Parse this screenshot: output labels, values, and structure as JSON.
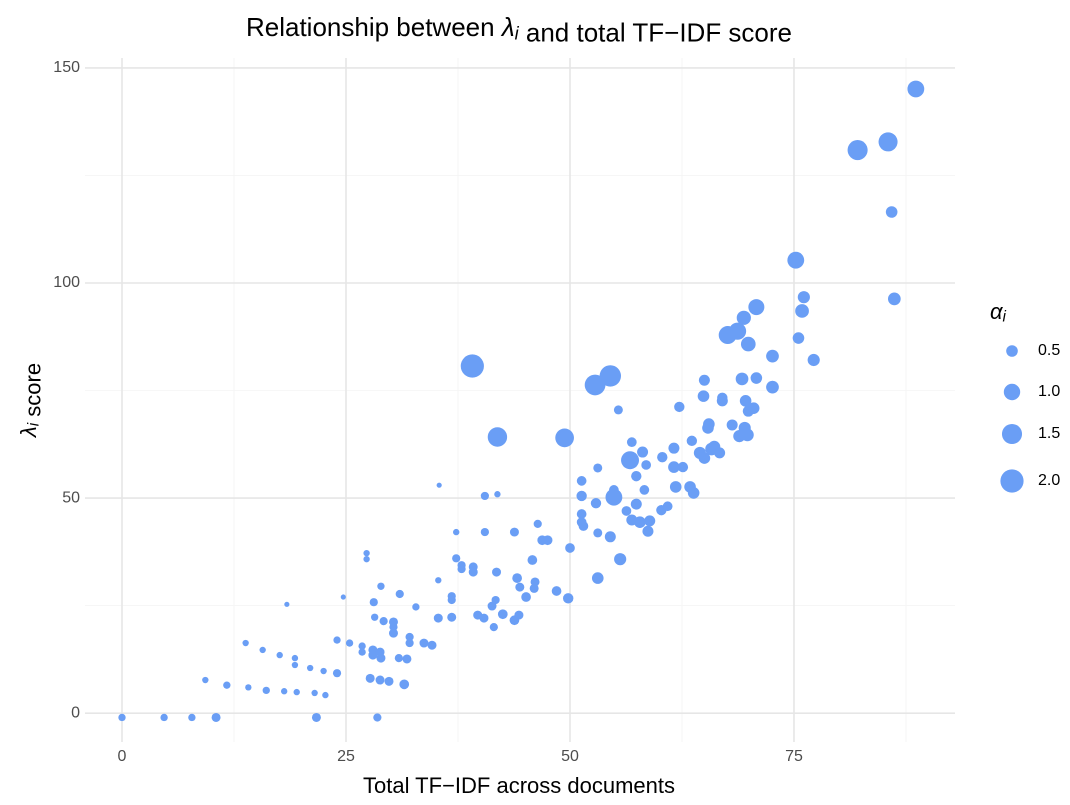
{
  "chart_data": {
    "type": "scatter",
    "title": "Relationship between λi and total TF−IDF score",
    "x_label": "Total TF−IDF across documents",
    "y_label": "λi score",
    "xlim": [
      -4.13,
      92.97
    ],
    "ylim": [
      -6.7,
      152.3
    ],
    "xticks": [
      0,
      25,
      50,
      75
    ],
    "yticks": [
      0,
      50,
      100,
      150
    ],
    "xminor": [
      12.5,
      37.5,
      62.5,
      87.5
    ],
    "yminor": [
      25,
      75,
      125
    ],
    "grid": true,
    "size_legend": {
      "title": "αi",
      "values": [
        {
          "value": 0.5,
          "label": "0.5"
        },
        {
          "value": 1,
          "label": "1.0"
        },
        {
          "value": 1.5,
          "label": "1.5"
        },
        {
          "value": 2,
          "label": "2.0"
        }
      ]
    },
    "series": [
      {
        "color": "#6a9ef5",
        "x": [
          0,
          4.7,
          7.8,
          10.5,
          21.7,
          28.5,
          9.3,
          11.7,
          14.1,
          16.1,
          18.1,
          19.5,
          21.5,
          22.7,
          13.8,
          15.7,
          17.6,
          19.3,
          19.3,
          21,
          22.5,
          24,
          24,
          25.4,
          26.8,
          26.8,
          28,
          28,
          28.9,
          28.8,
          27.7,
          28.8,
          29.8,
          31.5,
          30.9,
          31.8,
          32.1,
          32.1,
          33.7,
          34.6,
          30.3,
          30.3,
          30.3,
          29.2,
          28.2,
          28.1,
          28.9,
          31,
          32.8,
          27.3,
          27.3,
          18.4,
          24.7,
          35.3,
          35.4,
          36.8,
          36.8,
          37.3,
          37.3,
          37.9,
          37.9,
          39.2,
          39.2,
          35.3,
          36.8,
          39.7,
          40.4,
          41.5,
          41.3,
          41.7,
          42.5,
          43.8,
          44.3,
          44.1,
          44.4,
          45.1,
          46,
          46.1,
          45.8,
          41.8,
          40.5,
          43.8,
          46.4,
          46.9,
          47.5,
          40.5,
          41.9,
          48.5,
          49.8,
          50,
          51.3,
          51.3,
          51.3,
          51.3,
          51.5,
          52.9,
          53.1,
          53.1,
          53.1,
          54.5,
          54.9,
          54.9,
          55.4,
          55.6,
          56.3,
          56.7,
          56.9,
          56.9,
          57.4,
          57.4,
          57.8,
          58.3,
          58.5,
          58.1,
          58.7,
          58.9,
          60.2,
          60.3,
          60.9,
          61.6,
          61.6,
          61.8,
          62.6,
          62.2,
          63.4,
          63.6,
          63.8,
          64.5,
          64.9,
          65,
          65,
          65.4,
          65.5,
          65.8,
          66.1,
          66.7,
          67,
          67,
          67.6,
          68.1,
          68.7,
          68.9,
          69.2,
          69.4,
          69.5,
          69.6,
          69.8,
          69.9,
          69.9,
          70.5,
          70.8,
          70.8,
          72.6,
          72.6,
          75.2,
          75.5,
          75.9,
          76.1,
          77.2,
          82.1,
          85.5,
          85.9,
          86.2,
          88.6,
          39.1,
          41.9,
          49.4,
          52.8,
          54.5
        ],
        "values": [
          -1,
          -1,
          -1,
          -1,
          -1,
          -1,
          7.7,
          6.5,
          6,
          5.3,
          5.1,
          4.9,
          4.7,
          4.2,
          16.3,
          14.7,
          13.5,
          12.8,
          11.2,
          10.5,
          9.8,
          9.3,
          17,
          16.3,
          15.6,
          14.2,
          14.7,
          13.5,
          12.8,
          14.2,
          8.1,
          7.7,
          7.4,
          6.7,
          12.8,
          12.6,
          17.7,
          16.3,
          16.3,
          15.8,
          21.2,
          20,
          18.6,
          21.4,
          22.3,
          25.8,
          29.5,
          27.7,
          24.7,
          37.2,
          35.8,
          25.3,
          27,
          30.9,
          53,
          27.2,
          26.3,
          42.1,
          36,
          34.4,
          33.5,
          34,
          32.8,
          22.1,
          22.3,
          22.8,
          22.1,
          20,
          24.9,
          26.3,
          23,
          21.6,
          22.8,
          31.4,
          29.3,
          27,
          29,
          30.5,
          35.6,
          32.8,
          42.1,
          42.1,
          44,
          40.2,
          40.2,
          50.5,
          50.9,
          28.4,
          26.7,
          38.4,
          44.4,
          46.3,
          50.5,
          54,
          43.5,
          48.8,
          31.4,
          41.9,
          57,
          41,
          50.2,
          51.9,
          70.5,
          35.8,
          47,
          58.8,
          44.9,
          63,
          55.1,
          48.6,
          44.4,
          51.9,
          57.7,
          60.7,
          42.3,
          44.7,
          47.2,
          59.5,
          48.1,
          57.2,
          61.6,
          52.6,
          57.2,
          71.2,
          52.6,
          63.3,
          51.2,
          60.5,
          73.7,
          77.4,
          59.3,
          66.3,
          67.2,
          61.4,
          61.9,
          60.5,
          72.6,
          73.3,
          87.9,
          67,
          88.8,
          64.4,
          77.7,
          91.9,
          66.3,
          72.6,
          64.7,
          85.8,
          70.2,
          70.9,
          77.9,
          94.4,
          83,
          75.8,
          105.3,
          87.2,
          93.5,
          96.7,
          82.1,
          130.9,
          132.8,
          116.5,
          96.3,
          145.1,
          80.7,
          64.2,
          64,
          76.3,
          78.4
        ],
        "sizes": [
          0.2,
          0.2,
          0.2,
          0.3,
          0.3,
          0.25,
          0.15,
          0.2,
          0.15,
          0.2,
          0.15,
          0.15,
          0.15,
          0.15,
          0.15,
          0.15,
          0.15,
          0.15,
          0.15,
          0.15,
          0.15,
          0.25,
          0.2,
          0.2,
          0.2,
          0.2,
          0.3,
          0.3,
          0.3,
          0.3,
          0.3,
          0.3,
          0.3,
          0.35,
          0.25,
          0.3,
          0.25,
          0.25,
          0.3,
          0.3,
          0.3,
          0.25,
          0.3,
          0.25,
          0.2,
          0.25,
          0.2,
          0.25,
          0.2,
          0.15,
          0.15,
          0.1,
          0.1,
          0.15,
          0.1,
          0.25,
          0.25,
          0.15,
          0.25,
          0.25,
          0.25,
          0.3,
          0.3,
          0.3,
          0.3,
          0.3,
          0.3,
          0.25,
          0.3,
          0.25,
          0.35,
          0.35,
          0.3,
          0.35,
          0.3,
          0.35,
          0.3,
          0.3,
          0.35,
          0.3,
          0.25,
          0.3,
          0.25,
          0.35,
          0.35,
          0.25,
          0.15,
          0.35,
          0.4,
          0.35,
          0.35,
          0.35,
          0.4,
          0.35,
          0.35,
          0.4,
          0.5,
          0.3,
          0.3,
          0.45,
          1.05,
          0.35,
          0.3,
          0.55,
          0.35,
          1.2,
          0.45,
          0.35,
          0.4,
          0.45,
          0.5,
          0.35,
          0.35,
          0.45,
          0.45,
          0.45,
          0.4,
          0.4,
          0.35,
          0.5,
          0.45,
          0.5,
          0.4,
          0.4,
          0.5,
          0.4,
          0.5,
          0.55,
          0.5,
          0.45,
          0.5,
          0.5,
          0.5,
          0.6,
          0.55,
          0.45,
          0.45,
          0.4,
          1.2,
          0.45,
          1.1,
          0.55,
          0.6,
          0.75,
          0.55,
          0.5,
          0.6,
          0.8,
          0.45,
          0.5,
          0.5,
          0.95,
          0.6,
          0.6,
          1.05,
          0.5,
          0.7,
          0.55,
          0.55,
          1.5,
          1.35,
          0.5,
          0.6,
          1.05,
          2,
          1.4,
          1.3,
          1.6,
          1.7
        ]
      }
    ]
  }
}
